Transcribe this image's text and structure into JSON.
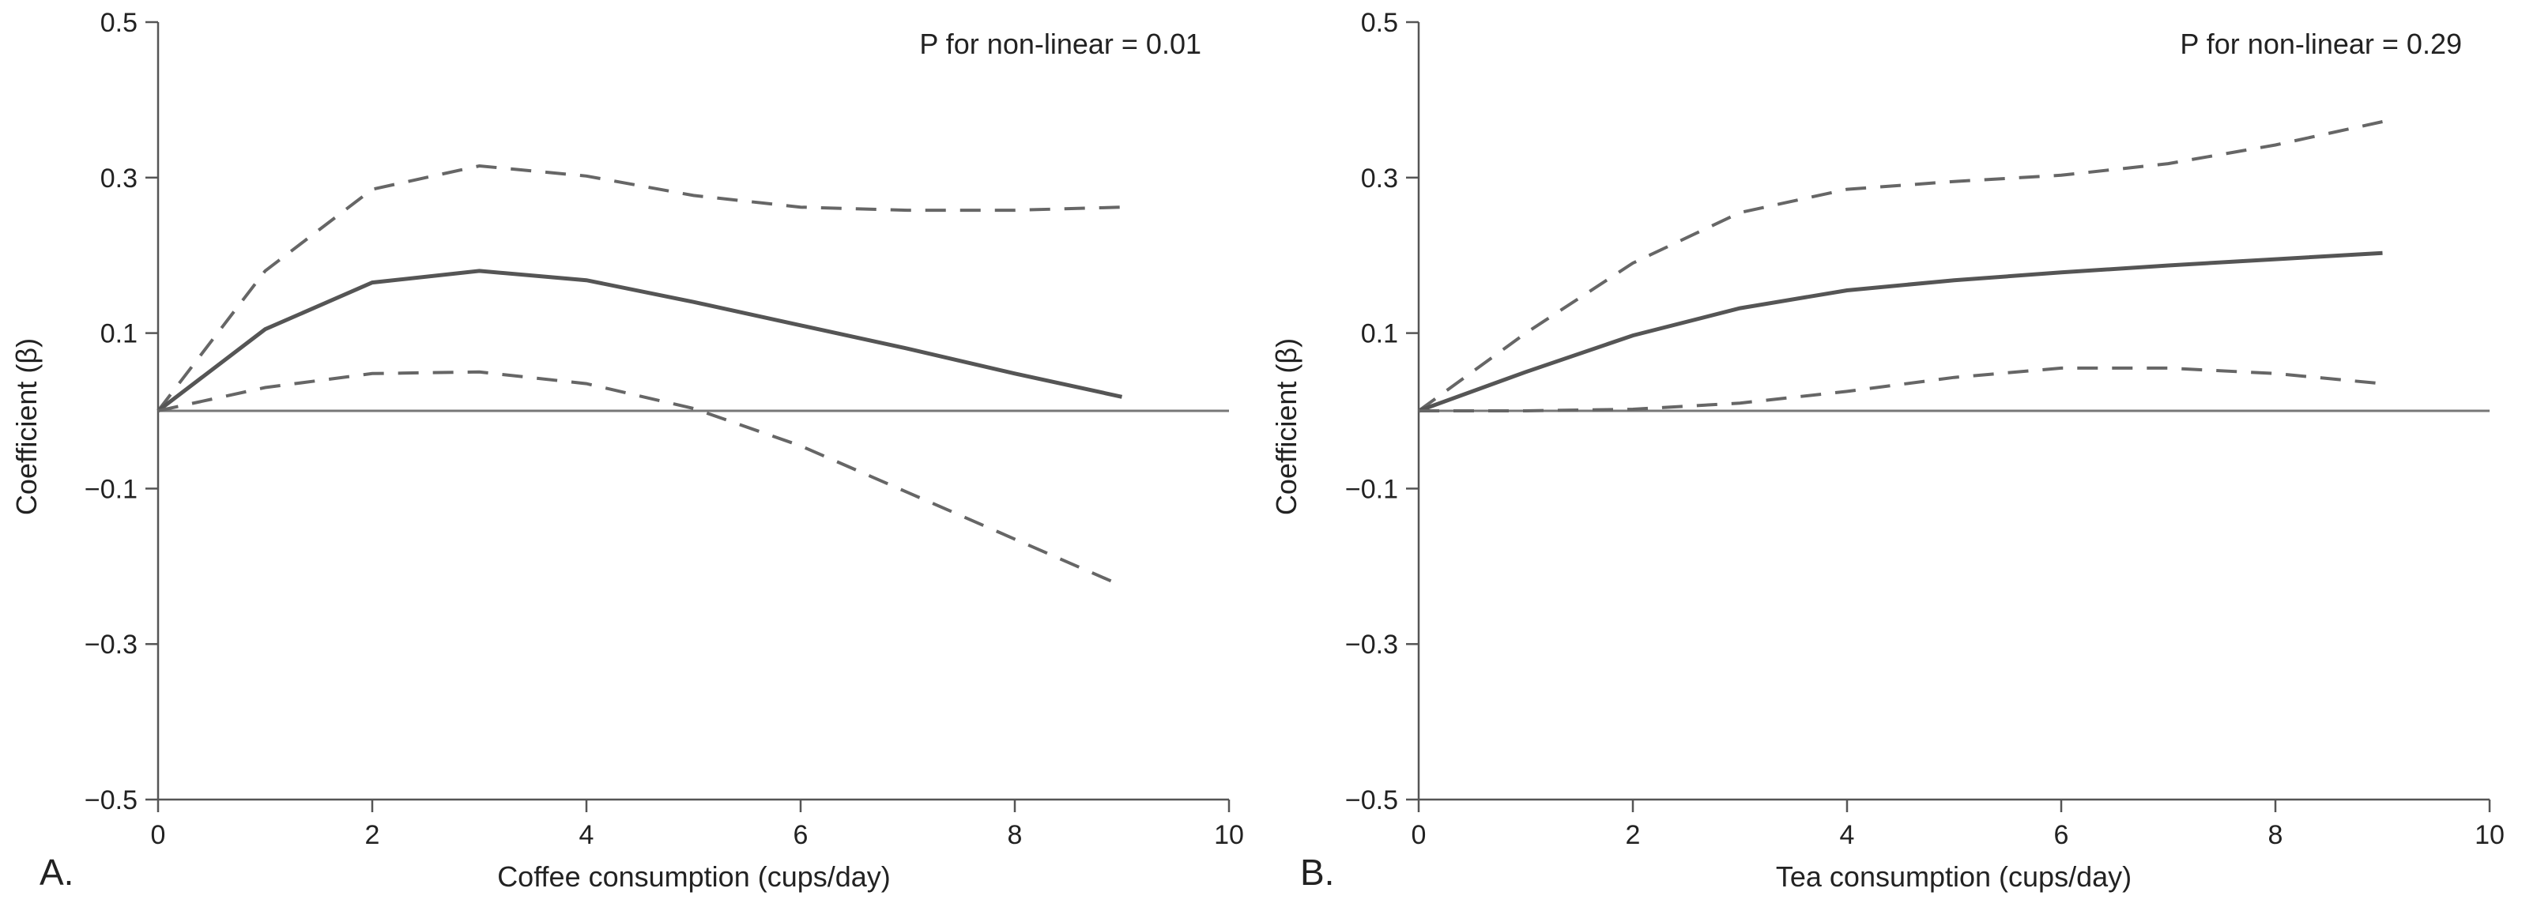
{
  "chart_data": [
    {
      "type": "line",
      "panel_label": "A.",
      "annotation": "P for non-linear = 0.01",
      "xlabel": "Coffee consumption (cups/day)",
      "ylabel": "Coefficient (β)",
      "xlim": [
        0,
        10
      ],
      "ylim": [
        -0.5,
        0.5
      ],
      "xticks": [
        0,
        2,
        4,
        6,
        8,
        10
      ],
      "xtick_labels": [
        "0",
        "2",
        "4",
        "6",
        "8",
        "10"
      ],
      "yticks": [
        -0.5,
        -0.3,
        -0.1,
        0.1,
        0.3,
        0.5
      ],
      "ytick_labels": [
        "−0.5",
        "−0.3",
        "−0.1",
        "0.1",
        "0.3",
        "0.5"
      ],
      "reference_line": 0,
      "series": [
        {
          "name": "Upper 95% CI",
          "style": "dashed",
          "x": [
            0,
            1,
            2,
            3,
            4,
            5,
            6,
            7,
            8,
            9
          ],
          "values": [
            0,
            0.18,
            0.285,
            0.315,
            0.302,
            0.277,
            0.262,
            0.258,
            0.258,
            0.262
          ]
        },
        {
          "name": "Coefficient",
          "style": "solid",
          "x": [
            0,
            1,
            2,
            3,
            4,
            5,
            6,
            7,
            8,
            9
          ],
          "values": [
            0,
            0.105,
            0.165,
            0.18,
            0.168,
            0.14,
            0.11,
            0.08,
            0.048,
            0.018
          ]
        },
        {
          "name": "Lower 95% CI",
          "style": "dashed",
          "x": [
            0,
            1,
            2,
            3,
            4,
            5,
            6,
            7,
            8,
            9
          ],
          "values": [
            0,
            0.03,
            0.048,
            0.05,
            0.035,
            0.003,
            -0.045,
            -0.105,
            -0.165,
            -0.225
          ]
        }
      ]
    },
    {
      "type": "line",
      "panel_label": "B.",
      "annotation": "P for non-linear = 0.29",
      "xlabel": "Tea consumption (cups/day)",
      "ylabel": "Coefficient (β)",
      "xlim": [
        0,
        10
      ],
      "ylim": [
        -0.5,
        0.5
      ],
      "xticks": [
        0,
        2,
        4,
        6,
        8,
        10
      ],
      "xtick_labels": [
        "0",
        "2",
        "4",
        "6",
        "8",
        "10"
      ],
      "yticks": [
        -0.5,
        -0.3,
        -0.1,
        0.1,
        0.3,
        0.5
      ],
      "ytick_labels": [
        "−0.5",
        "−0.3",
        "−0.1",
        "0.1",
        "0.3",
        "0.5"
      ],
      "reference_line": 0,
      "series": [
        {
          "name": "Upper 95% CI",
          "style": "dashed",
          "x": [
            0,
            1,
            2,
            3,
            4,
            5,
            6,
            7,
            8,
            9
          ],
          "values": [
            0,
            0.1,
            0.19,
            0.255,
            0.285,
            0.295,
            0.303,
            0.318,
            0.342,
            0.372
          ]
        },
        {
          "name": "Coefficient",
          "style": "solid",
          "x": [
            0,
            1,
            2,
            3,
            4,
            5,
            6,
            7,
            8,
            9
          ],
          "values": [
            0,
            0.05,
            0.097,
            0.132,
            0.155,
            0.168,
            0.178,
            0.187,
            0.195,
            0.203
          ]
        },
        {
          "name": "Lower 95% CI",
          "style": "dashed",
          "x": [
            0,
            1,
            2,
            3,
            4,
            5,
            6,
            7,
            8,
            9
          ],
          "values": [
            0,
            0,
            0.002,
            0.01,
            0.025,
            0.043,
            0.055,
            0.055,
            0.048,
            0.035
          ]
        }
      ]
    }
  ]
}
